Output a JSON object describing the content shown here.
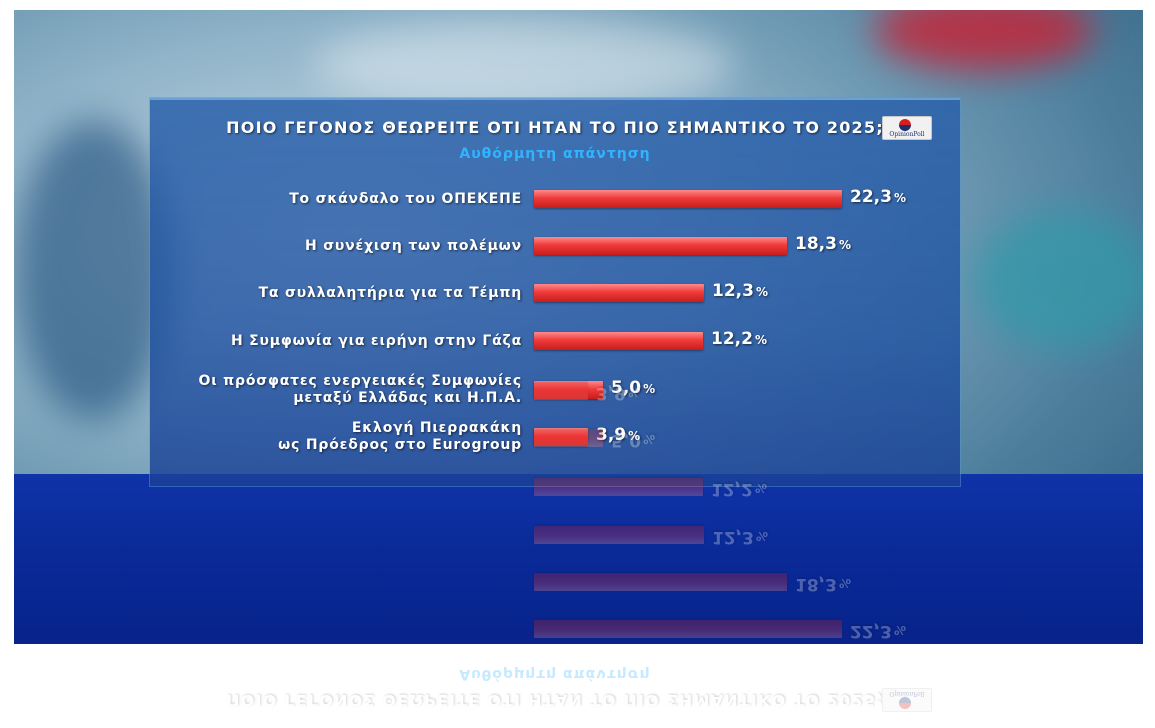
{
  "chart_data": {
    "type": "bar",
    "orientation": "horizontal",
    "title": "ΠΟΙΟ ΓΕΓΟΝΟΣ ΘΕΩΡΕΙΤΕ ΟΤΙ ΗΤΑΝ ΤΟ ΠΙΟ ΣΗΜΑΝΤΙΚΟ ΤΟ 2025;",
    "subtitle": "Αυθόρμητη απάντηση",
    "unit": "%",
    "xlim": [
      0,
      25
    ],
    "categories": [
      [
        "Το σκάνδαλο του ΟΠΕΚΕΠΕ"
      ],
      [
        "Η συνέχιση των πολέμων"
      ],
      [
        "Τα συλλαλητήρια για τα Τέμπη"
      ],
      [
        "Η Συμφωνία για ειρήνη στην Γάζα"
      ],
      [
        "Οι πρόσφατες ενεργειακές Συμφωνίες",
        "μεταξύ Ελλάδας και Η.Π.Α."
      ],
      [
        "Εκλογή Πιερρακάκη",
        "ως Πρόεδρος στο Eurogroup"
      ]
    ],
    "values": [
      22.3,
      18.3,
      12.3,
      12.2,
      5.0,
      3.9
    ],
    "value_labels": [
      "22,3",
      "18,3",
      "12,3",
      "12,2",
      "5,0",
      "3,9"
    ],
    "bar_color": "#e8302f"
  },
  "brand": {
    "logo_text": "OpinionPoll"
  }
}
